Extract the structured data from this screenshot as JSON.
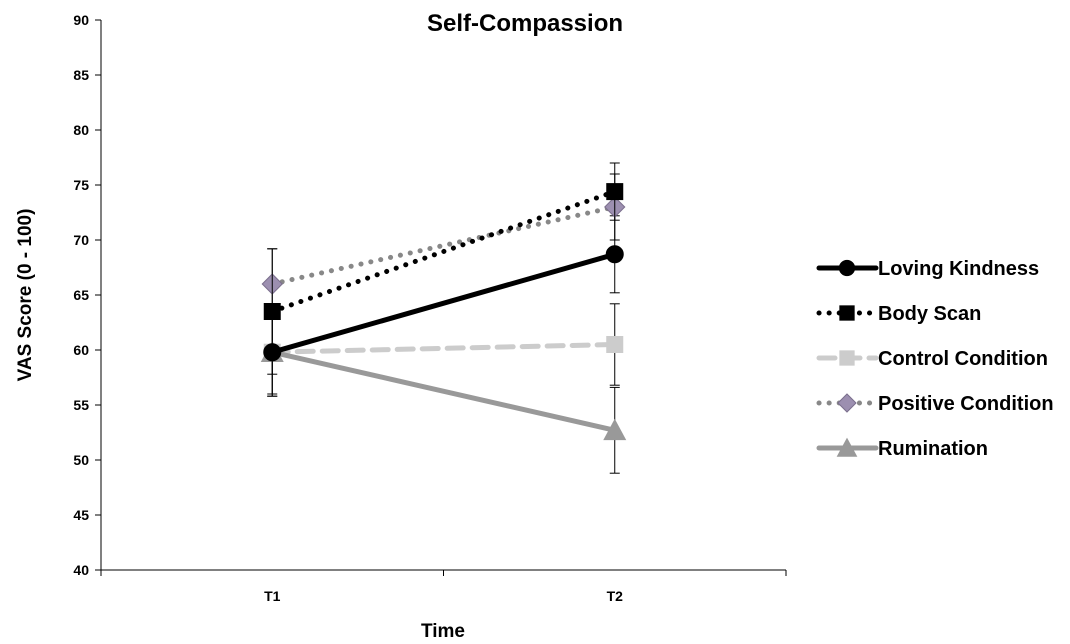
{
  "chart_data": {
    "type": "line",
    "title": "Self-Compassion",
    "xlabel": "Time",
    "ylabel": "VAS Score (0 - 100)",
    "categories": [
      "T1",
      "T2"
    ],
    "ylim": [
      40,
      90
    ],
    "yticks": [
      40,
      45,
      50,
      55,
      60,
      65,
      70,
      75,
      80,
      85,
      90
    ],
    "grid": false,
    "legend_position": "right",
    "series": [
      {
        "name": "Loving Kindness",
        "values": [
          59.8,
          68.7
        ],
        "error": [
          4.0,
          3.5
        ],
        "color": "#000000",
        "line_style": "solid",
        "marker": "circle"
      },
      {
        "name": "Body Scan",
        "values": [
          63.5,
          74.4
        ],
        "error": [
          5.7,
          2.6
        ],
        "color": "#000000",
        "line_style": "dotted",
        "marker": "square"
      },
      {
        "name": "Control Condition",
        "values": [
          59.8,
          60.5
        ],
        "error": [
          3.8,
          3.7
        ],
        "color": "#cccccc",
        "line_style": "dashed",
        "marker": "square"
      },
      {
        "name": "Positive Condition",
        "values": [
          66.0,
          73.0
        ],
        "error": [
          3.2,
          3.0
        ],
        "color": "#888888",
        "marker_color": "#9c8fb0",
        "line_style": "dotted",
        "marker": "diamond"
      },
      {
        "name": "Rumination",
        "values": [
          59.8,
          52.7
        ],
        "error": [
          4.0,
          3.9
        ],
        "color": "#999999",
        "line_style": "solid",
        "marker": "triangle"
      }
    ]
  }
}
